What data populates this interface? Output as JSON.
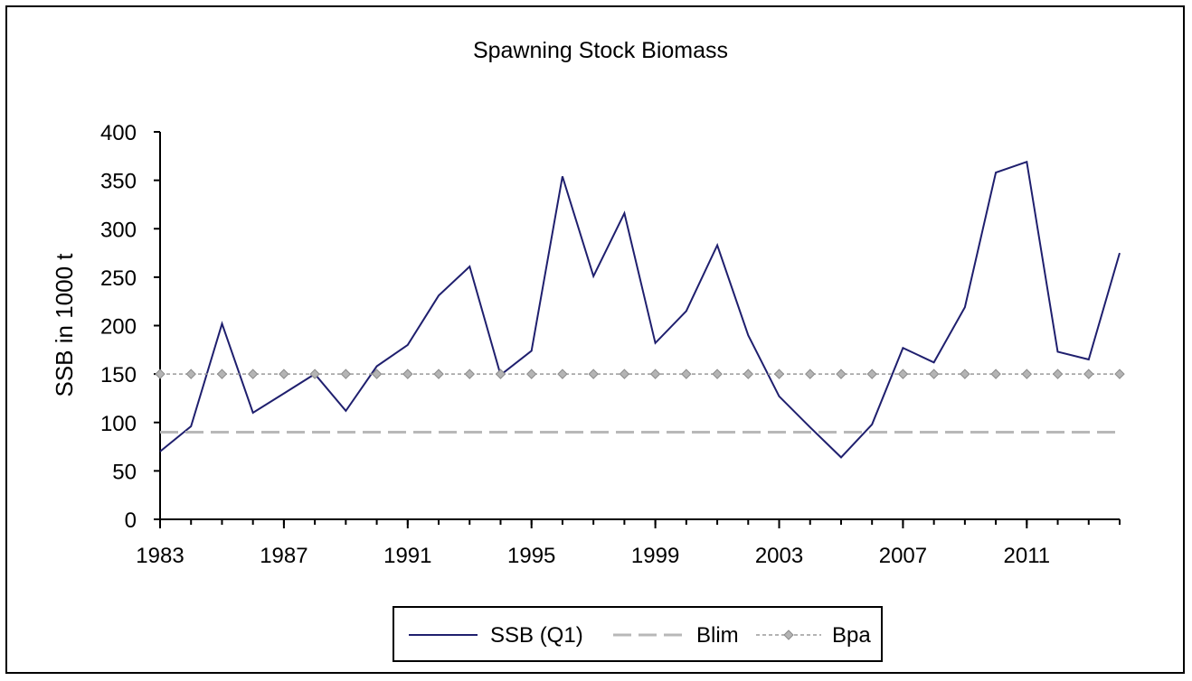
{
  "chart_data": {
    "type": "line",
    "title": "Spawning  Stock Biomass",
    "ylabel": "SSB in 1000 t",
    "xlabel": "",
    "x": [
      1983,
      1984,
      1985,
      1986,
      1987,
      1988,
      1989,
      1990,
      1991,
      1992,
      1993,
      1994,
      1995,
      1996,
      1997,
      1998,
      1999,
      2000,
      2001,
      2002,
      2003,
      2004,
      2005,
      2006,
      2007,
      2008,
      2009,
      2010,
      2011,
      2012,
      2013,
      2014
    ],
    "xlim": [
      1983,
      2014
    ],
    "ylim": [
      0,
      400
    ],
    "yticks": [
      0,
      50,
      100,
      150,
      200,
      250,
      300,
      350,
      400
    ],
    "ytick_labels": [
      "0",
      "50",
      "100",
      "150",
      "200",
      "250",
      "300",
      "350",
      "400"
    ],
    "xticks": [
      1983,
      1987,
      1991,
      1995,
      1999,
      2003,
      2007,
      2011
    ],
    "xtick_labels": [
      "1983",
      "1987",
      "1991",
      "1995",
      "1999",
      "2003",
      "2007",
      "2011"
    ],
    "grid": false,
    "legend_position": "bottom",
    "series": [
      {
        "name": "SSB (Q1)",
        "color": "#1f1f6e",
        "style": "solid",
        "values": [
          70,
          96,
          202,
          110,
          130,
          150,
          112,
          158,
          180,
          231,
          261,
          149,
          174,
          354,
          251,
          316,
          182,
          215,
          283,
          190,
          127,
          95,
          64,
          98,
          177,
          162,
          219,
          358,
          369,
          173,
          165,
          275
        ]
      },
      {
        "name": "Blim",
        "color": "#b8b8b8",
        "style": "dashed",
        "values": [
          90,
          90,
          90,
          90,
          90,
          90,
          90,
          90,
          90,
          90,
          90,
          90,
          90,
          90,
          90,
          90,
          90,
          90,
          90,
          90,
          90,
          90,
          90,
          90,
          90,
          90,
          90,
          90,
          90,
          90,
          90,
          90
        ]
      },
      {
        "name": "Bpa",
        "color": "#9a9a9a",
        "style": "dotted-diamond",
        "values": [
          150,
          150,
          150,
          150,
          150,
          150,
          150,
          150,
          150,
          150,
          150,
          150,
          150,
          150,
          150,
          150,
          150,
          150,
          150,
          150,
          150,
          150,
          150,
          150,
          150,
          150,
          150,
          150,
          150,
          150,
          150,
          150
        ]
      }
    ]
  }
}
